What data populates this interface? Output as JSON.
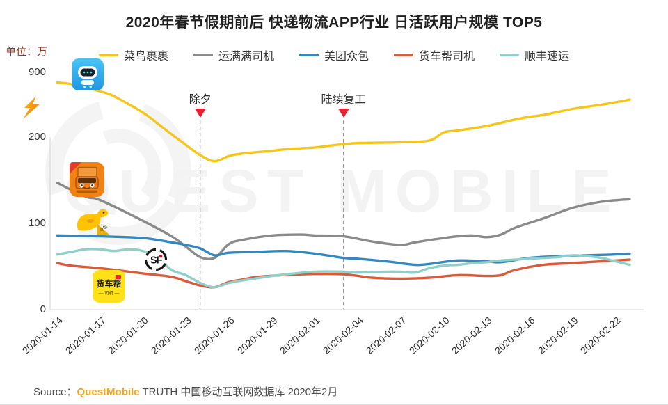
{
  "title": "2020年春节假期前后 快递物流APP行业 日活跃用户规模 TOP5",
  "watermark": {
    "text": "QUEST MOBILE"
  },
  "y_axis": {
    "unit": "单位：万",
    "ticks": [
      "900",
      "200",
      "100",
      "0"
    ],
    "break_between": [
      200,
      900
    ]
  },
  "x_axis": {
    "labels": [
      "2020-01-14",
      "2020-01-17",
      "2020-01-20",
      "2020-01-23",
      "2020-01-26",
      "2020-01-29",
      "2020-02-01",
      "2020-02-04",
      "2020-02-07",
      "2020-02-10",
      "2020-02-13",
      "2020-02-16",
      "2020-02-19",
      "2020-02-22"
    ]
  },
  "legend": [
    {
      "key": "cainiao-guoguo",
      "label": "菜鸟裹裹",
      "color": "#f5c51a"
    },
    {
      "key": "yunmanman-driver",
      "label": "运满满司机",
      "color": "#8a8a8a"
    },
    {
      "key": "meituan-zhongbao",
      "label": "美团众包",
      "color": "#3389bd"
    },
    {
      "key": "huochebang-driver",
      "label": "货车帮司机",
      "color": "#d85c3b"
    },
    {
      "key": "sf-express",
      "label": "顺丰速运",
      "color": "#8fcfc9"
    }
  ],
  "annotations": [
    {
      "label": "除夕",
      "day_index": 10,
      "date": "2020-01-24"
    },
    {
      "label": "陆续复工",
      "day_index": 20,
      "date": "2020-02-03"
    }
  ],
  "icons": {
    "cainiao_guoguo": {
      "name": "cainiao-guoguo-app-icon",
      "app": "菜鸟裹裹"
    },
    "yunmanman": {
      "name": "yunmanman-truck-app-icon",
      "app": "运满满司机"
    },
    "meituan": {
      "name": "meituan-kangaroo-icon",
      "app": "美团众包",
      "tag_text": "众包"
    },
    "sf": {
      "name": "sf-express-logo-icon",
      "letters": "SF"
    },
    "huochebang": {
      "name": "huochebang-app-icon",
      "line1": "货车帮",
      "line2": "— 司机 —"
    }
  },
  "source": {
    "prefix": "Source：",
    "brand": "QuestMobile",
    "rest": " TRUTH 中国移动互联网数据库 2020年2月"
  },
  "colors": {
    "marker_triangle": "#e8212e",
    "axis": "#d9d9d9",
    "dashed_line": "#9a9a9a",
    "unit_label": "#93392c"
  },
  "chart_data": {
    "type": "line",
    "title": "2020年春节假期前后 快递物流APP行业 日活跃用户规模 TOP5",
    "unit": "万",
    "x_start_date": "2020-01-14",
    "x_end_date": "2020-02-23",
    "x_tick_interval_days": 3,
    "y_ticks": [
      0,
      100,
      200,
      900
    ],
    "axis_break": {
      "compressed_zone_from": 200,
      "compressed_zone_to": 900
    },
    "grid": false,
    "legend_position": "top",
    "markers": [
      {
        "label": "除夕",
        "day_index": 10
      },
      {
        "label": "陆续复工",
        "day_index": 20
      }
    ],
    "series": [
      {
        "name": "菜鸟裹裹",
        "key": "cainiao-guoguo",
        "color": "#f5c51a",
        "points": [
          [
            0,
            790
          ],
          [
            1,
            772
          ],
          [
            3,
            695
          ],
          [
            4,
            640
          ],
          [
            6,
            465
          ],
          [
            7,
            350
          ],
          [
            8,
            230
          ],
          [
            9,
            191
          ],
          [
            10,
            179
          ],
          [
            11,
            172
          ],
          [
            12,
            178
          ],
          [
            13,
            181
          ],
          [
            15,
            184
          ],
          [
            16,
            186
          ],
          [
            18,
            188
          ],
          [
            19,
            190
          ],
          [
            21,
            193
          ],
          [
            24,
            194
          ],
          [
            26,
            196
          ],
          [
            27,
            250
          ],
          [
            28,
            272
          ],
          [
            30,
            320
          ],
          [
            32,
            390
          ],
          [
            33,
            420
          ],
          [
            34,
            440
          ],
          [
            36,
            505
          ],
          [
            38,
            550
          ],
          [
            39,
            576
          ],
          [
            40,
            605
          ]
        ]
      },
      {
        "name": "运满满司机",
        "key": "yunmanman-driver",
        "color": "#8a8a8a",
        "points": [
          [
            0,
            147
          ],
          [
            2,
            131
          ],
          [
            3,
            127
          ],
          [
            6,
            103
          ],
          [
            8,
            85
          ],
          [
            9,
            73
          ],
          [
            10,
            61
          ],
          [
            11,
            60
          ],
          [
            12,
            76
          ],
          [
            13,
            81
          ],
          [
            15,
            86
          ],
          [
            17,
            87
          ],
          [
            18,
            86
          ],
          [
            20,
            85
          ],
          [
            22,
            79
          ],
          [
            24,
            75
          ],
          [
            25,
            78
          ],
          [
            27,
            83
          ],
          [
            28,
            85
          ],
          [
            29,
            86
          ],
          [
            30,
            84
          ],
          [
            31,
            87
          ],
          [
            32,
            95
          ],
          [
            34,
            106
          ],
          [
            36,
            118
          ],
          [
            38,
            125
          ],
          [
            40,
            128
          ]
        ]
      },
      {
        "name": "美团众包",
        "key": "meituan-zhongbao",
        "color": "#3389bd",
        "points": [
          [
            0,
            86
          ],
          [
            3,
            85
          ],
          [
            6,
            83
          ],
          [
            8,
            78
          ],
          [
            9,
            75
          ],
          [
            10,
            71
          ],
          [
            11,
            63
          ],
          [
            12,
            66
          ],
          [
            14,
            67
          ],
          [
            16,
            68
          ],
          [
            18,
            65
          ],
          [
            20,
            60
          ],
          [
            21,
            59
          ],
          [
            23,
            56
          ],
          [
            25,
            52
          ],
          [
            26,
            53
          ],
          [
            28,
            57
          ],
          [
            30,
            56
          ],
          [
            31,
            55
          ],
          [
            33,
            60
          ],
          [
            35,
            62
          ],
          [
            37,
            63
          ],
          [
            39,
            64
          ],
          [
            40,
            65
          ]
        ]
      },
      {
        "name": "货车帮司机",
        "key": "huochebang-driver",
        "color": "#d85c3b",
        "points": [
          [
            0,
            54
          ],
          [
            1,
            51
          ],
          [
            3,
            48
          ],
          [
            5,
            44
          ],
          [
            6,
            42
          ],
          [
            8,
            38
          ],
          [
            9,
            33
          ],
          [
            10,
            28
          ],
          [
            11,
            26
          ],
          [
            12,
            32
          ],
          [
            13,
            35
          ],
          [
            14,
            38
          ],
          [
            17,
            41
          ],
          [
            20,
            41
          ],
          [
            22,
            37
          ],
          [
            24,
            36
          ],
          [
            26,
            37
          ],
          [
            28,
            40
          ],
          [
            30,
            39
          ],
          [
            31,
            40
          ],
          [
            32,
            46
          ],
          [
            34,
            52
          ],
          [
            36,
            54
          ],
          [
            38,
            56
          ],
          [
            40,
            58
          ]
        ]
      },
      {
        "name": "顺丰速运",
        "key": "sf-express",
        "color": "#8fcfc9",
        "points": [
          [
            0,
            64
          ],
          [
            1,
            67
          ],
          [
            2,
            70
          ],
          [
            3,
            70
          ],
          [
            4,
            68
          ],
          [
            5,
            70
          ],
          [
            6,
            68
          ],
          [
            7,
            60
          ],
          [
            8,
            46
          ],
          [
            9,
            40
          ],
          [
            10,
            31
          ],
          [
            11,
            26
          ],
          [
            12,
            31
          ],
          [
            13,
            34
          ],
          [
            15,
            39
          ],
          [
            16,
            41
          ],
          [
            18,
            44
          ],
          [
            20,
            44
          ],
          [
            21,
            43
          ],
          [
            23,
            44
          ],
          [
            24,
            44
          ],
          [
            25,
            43
          ],
          [
            26,
            48
          ],
          [
            27,
            51
          ],
          [
            28,
            52
          ],
          [
            29,
            54
          ],
          [
            30,
            55
          ],
          [
            31,
            57
          ],
          [
            33,
            59
          ],
          [
            34,
            60
          ],
          [
            35,
            61
          ],
          [
            36,
            63
          ],
          [
            37,
            62
          ],
          [
            38,
            60
          ],
          [
            39,
            56
          ],
          [
            40,
            52
          ]
        ]
      }
    ]
  }
}
